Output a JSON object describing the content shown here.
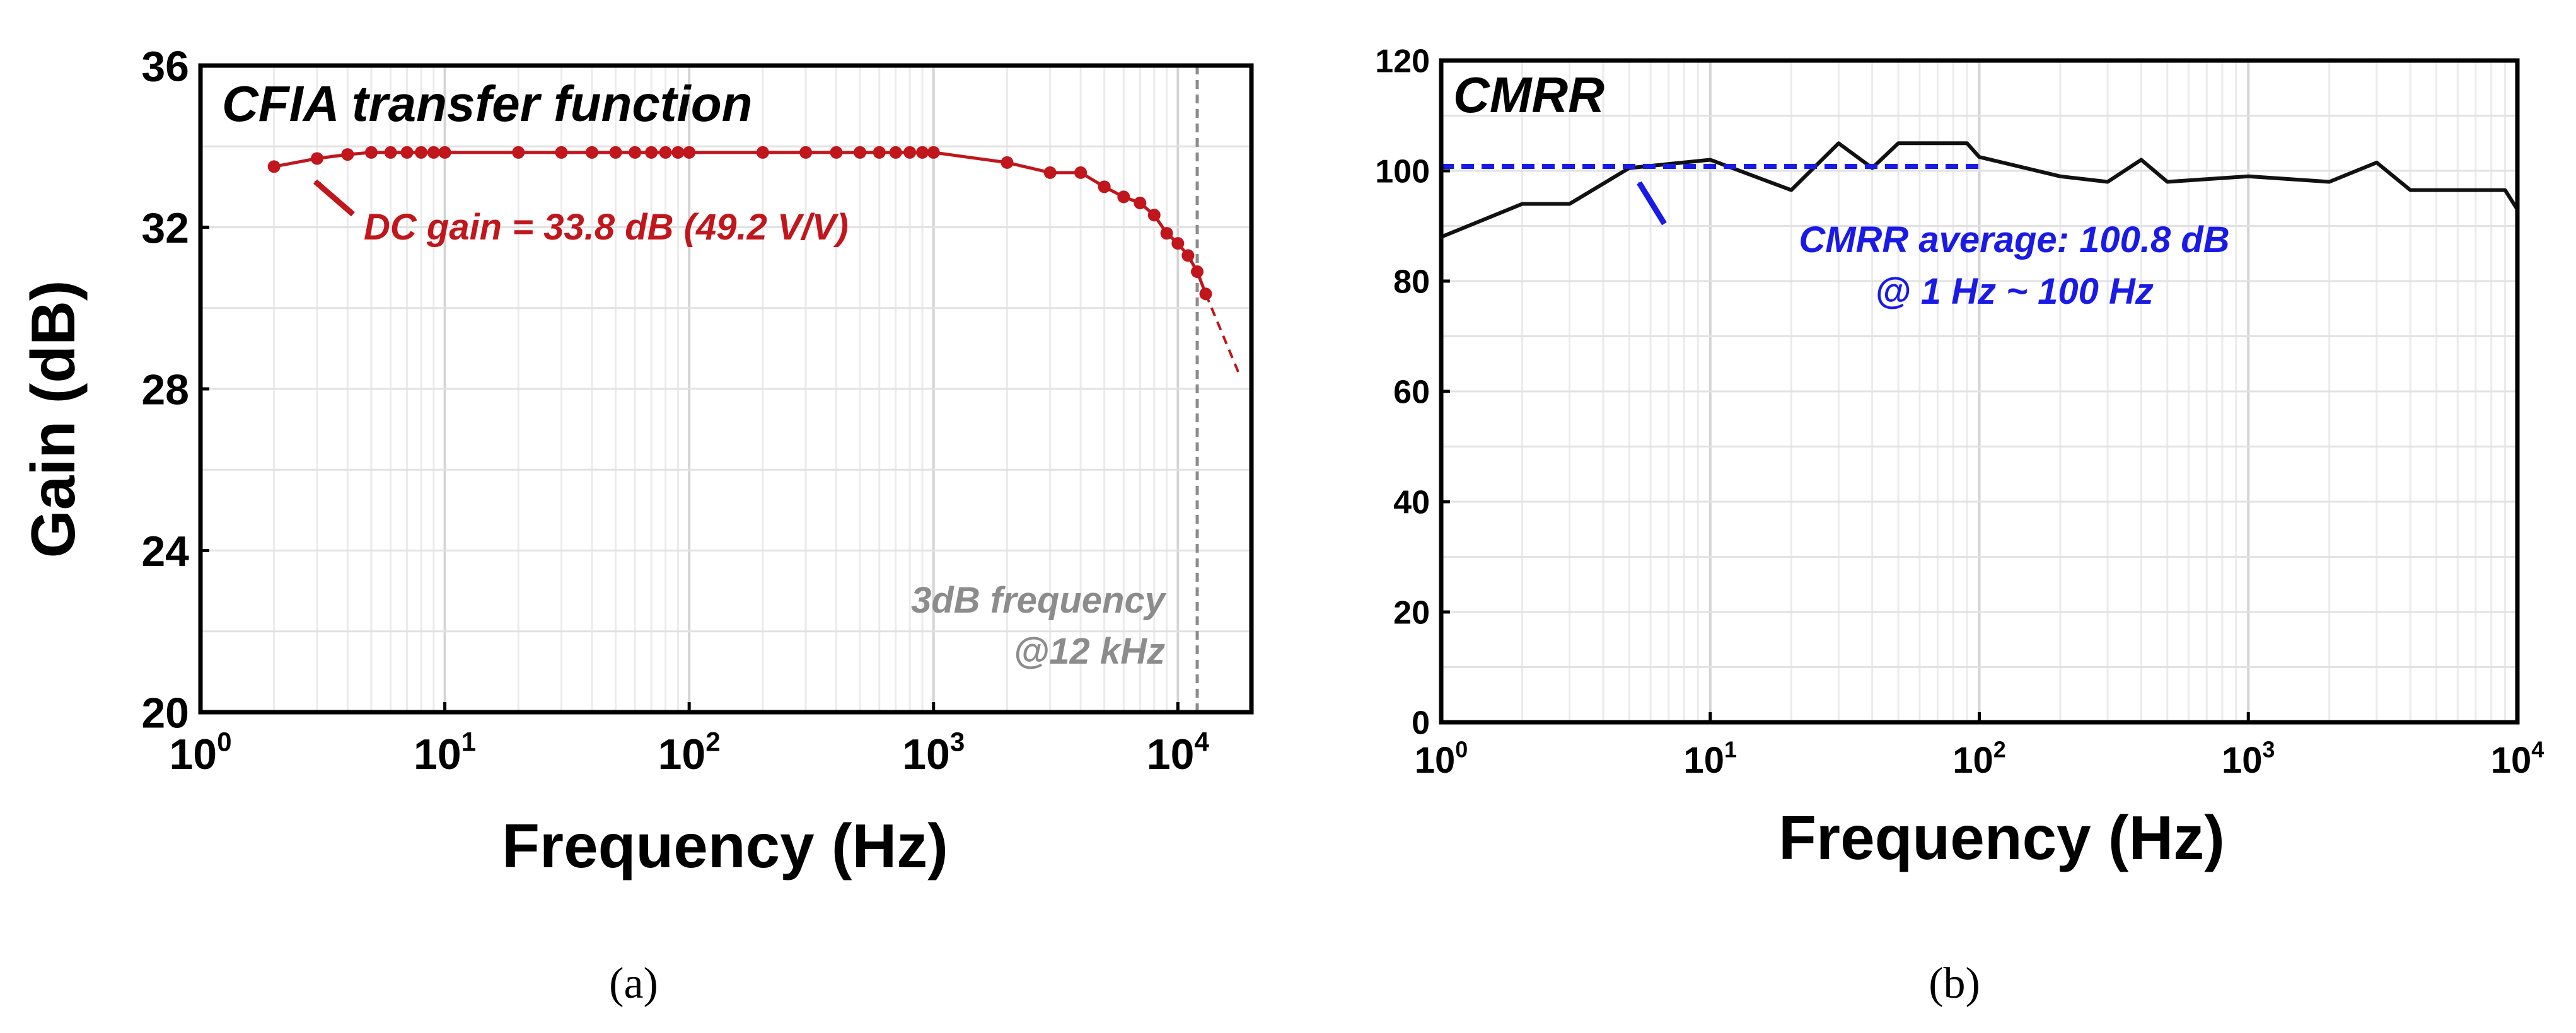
{
  "chart_data": [
    {
      "panel": "a",
      "type": "line",
      "title": "CFIA transfer function",
      "xlabel": "Frequency (Hz)",
      "ylabel": "Gain (dB)",
      "xscale": "log",
      "xlim": [
        1,
        20000
      ],
      "ylim": [
        20,
        36
      ],
      "yticks": [
        20,
        24,
        28,
        32,
        36
      ],
      "xticks": [
        {
          "value": 1,
          "base": "10",
          "exp": "0"
        },
        {
          "value": 10,
          "base": "10",
          "exp": "1"
        },
        {
          "value": 100,
          "base": "10",
          "exp": "2"
        },
        {
          "value": 1000,
          "base": "10",
          "exp": "3"
        },
        {
          "value": 10000,
          "base": "10",
          "exp": "4"
        }
      ],
      "grid": true,
      "series": [
        {
          "name": "CFIA gain",
          "color": "#c0161c",
          "x": [
            2,
            3,
            4,
            5,
            6,
            7,
            8,
            9,
            10,
            20,
            30,
            40,
            50,
            60,
            70,
            80,
            90,
            100,
            200,
            300,
            400,
            500,
            600,
            700,
            800,
            900,
            1000,
            2000,
            3000,
            4000,
            5000,
            6000,
            7000,
            8000,
            9000,
            10000,
            11000,
            12000,
            13000
          ],
          "y": [
            33.5,
            33.7,
            33.8,
            33.85,
            33.85,
            33.85,
            33.85,
            33.85,
            33.85,
            33.85,
            33.85,
            33.85,
            33.85,
            33.85,
            33.85,
            33.85,
            33.85,
            33.85,
            33.85,
            33.85,
            33.85,
            33.85,
            33.85,
            33.85,
            33.85,
            33.85,
            33.85,
            33.6,
            33.35,
            33.35,
            33.0,
            32.75,
            32.6,
            32.3,
            31.85,
            31.6,
            31.3,
            30.9,
            30.35
          ]
        },
        {
          "name": "extrapolation",
          "color": "#c0161c",
          "style": "dashed",
          "x": [
            13000,
            18000
          ],
          "y": [
            30.35,
            28.3
          ]
        }
      ],
      "vline": {
        "x": 12000,
        "color": "#8c8c8c",
        "style": "dashed"
      },
      "annotations": {
        "dc_gain": "DC gain = 33.8 dB (49.2 V/V)",
        "freq_line1": "3dB frequency",
        "freq_line2": "@12 kHz"
      }
    },
    {
      "panel": "b",
      "type": "line",
      "title": "CMRR",
      "xlabel": "Frequency (Hz)",
      "ylabel": "",
      "xscale": "log",
      "xlim": [
        1,
        10000
      ],
      "ylim": [
        0,
        120
      ],
      "yticks": [
        0,
        20,
        40,
        60,
        80,
        100,
        120
      ],
      "xticks": [
        {
          "value": 1,
          "base": "10",
          "exp": "0"
        },
        {
          "value": 10,
          "base": "10",
          "exp": "1"
        },
        {
          "value": 100,
          "base": "10",
          "exp": "2"
        },
        {
          "value": 1000,
          "base": "10",
          "exp": "3"
        },
        {
          "value": 10000,
          "base": "10",
          "exp": "4"
        }
      ],
      "grid": true,
      "series": [
        {
          "name": "CMRR",
          "color": "#111111",
          "x": [
            1,
            2,
            3,
            5,
            10,
            20,
            30,
            40,
            50,
            60,
            70,
            80,
            90,
            100,
            200,
            300,
            400,
            500,
            1000,
            2000,
            3000,
            4000,
            5000,
            6000,
            7000,
            8000,
            9000,
            10000
          ],
          "y": [
            88,
            94,
            94,
            100.5,
            102,
            96.5,
            105,
            100.5,
            105,
            105,
            105,
            105,
            105,
            102.5,
            99,
            98,
            102,
            98,
            99,
            98,
            101.5,
            96.5,
            96.5,
            96.5,
            96.5,
            96.5,
            96.5,
            93
          ]
        },
        {
          "name": "CMRR average",
          "color": "#1a1ae6",
          "style": "dashed",
          "x": [
            1,
            100
          ],
          "y": [
            100.8,
            100.8
          ]
        }
      ],
      "annotations": {
        "avg_line1": "CMRR average: 100.8 dB",
        "avg_line2": "@ 1 Hz ~ 100 Hz"
      }
    }
  ],
  "captions": {
    "a": "(a)",
    "b": "(b)"
  }
}
